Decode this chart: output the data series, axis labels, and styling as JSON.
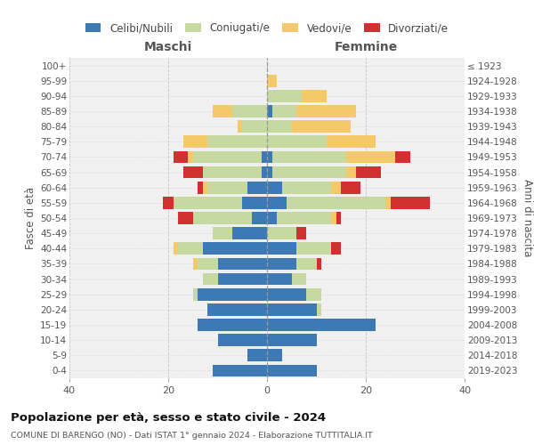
{
  "age_groups": [
    "0-4",
    "5-9",
    "10-14",
    "15-19",
    "20-24",
    "25-29",
    "30-34",
    "35-39",
    "40-44",
    "45-49",
    "50-54",
    "55-59",
    "60-64",
    "65-69",
    "70-74",
    "75-79",
    "80-84",
    "85-89",
    "90-94",
    "95-99",
    "100+"
  ],
  "birth_years": [
    "2019-2023",
    "2014-2018",
    "2009-2013",
    "2004-2008",
    "1999-2003",
    "1994-1998",
    "1989-1993",
    "1984-1988",
    "1979-1983",
    "1974-1978",
    "1969-1973",
    "1964-1968",
    "1959-1963",
    "1954-1958",
    "1949-1953",
    "1944-1948",
    "1939-1943",
    "1934-1938",
    "1929-1933",
    "1924-1928",
    "≤ 1923"
  ],
  "maschi": {
    "celibi": [
      11,
      4,
      10,
      14,
      12,
      14,
      10,
      10,
      13,
      7,
      3,
      5,
      4,
      1,
      1,
      0,
      0,
      0,
      0,
      0,
      0
    ],
    "coniugati": [
      0,
      0,
      0,
      0,
      0,
      1,
      3,
      4,
      5,
      4,
      12,
      14,
      8,
      12,
      14,
      12,
      5,
      7,
      0,
      0,
      0
    ],
    "vedovi": [
      0,
      0,
      0,
      0,
      0,
      0,
      0,
      1,
      1,
      0,
      0,
      0,
      1,
      0,
      1,
      5,
      1,
      4,
      0,
      0,
      0
    ],
    "divorziati": [
      0,
      0,
      0,
      0,
      0,
      0,
      0,
      0,
      0,
      0,
      3,
      2,
      1,
      4,
      3,
      0,
      0,
      0,
      0,
      0,
      0
    ]
  },
  "femmine": {
    "nubili": [
      10,
      3,
      10,
      22,
      10,
      8,
      5,
      6,
      6,
      0,
      2,
      4,
      3,
      1,
      1,
      0,
      0,
      1,
      0,
      0,
      0
    ],
    "coniugate": [
      0,
      0,
      0,
      0,
      1,
      3,
      3,
      4,
      7,
      6,
      11,
      20,
      10,
      15,
      15,
      12,
      5,
      5,
      7,
      0,
      0
    ],
    "vedove": [
      0,
      0,
      0,
      0,
      0,
      0,
      0,
      0,
      0,
      0,
      1,
      1,
      2,
      2,
      10,
      10,
      12,
      12,
      5,
      2,
      0
    ],
    "divorziate": [
      0,
      0,
      0,
      0,
      0,
      0,
      0,
      1,
      2,
      2,
      1,
      8,
      4,
      5,
      3,
      0,
      0,
      0,
      0,
      0,
      0
    ]
  },
  "colors": {
    "celibi": "#3d7ab5",
    "coniugati": "#c5d9a0",
    "vedovi": "#f5c96a",
    "divorziati": "#d03030"
  },
  "xlim": 40,
  "title": "Popolazione per età, sesso e stato civile - 2024",
  "subtitle": "COMUNE DI BARENGO (NO) - Dati ISTAT 1° gennaio 2024 - Elaborazione TUTTITALIA.IT",
  "ylabel_left": "Fasce di età",
  "ylabel_right": "Anni di nascita",
  "xlabel_left": "Maschi",
  "xlabel_right": "Femmine",
  "legend_labels": [
    "Celibi/Nubili",
    "Coniugati/e",
    "Vedovi/e",
    "Divorziati/e"
  ],
  "bg_color": "#f0f0f0",
  "grid_color": "#cccccc"
}
